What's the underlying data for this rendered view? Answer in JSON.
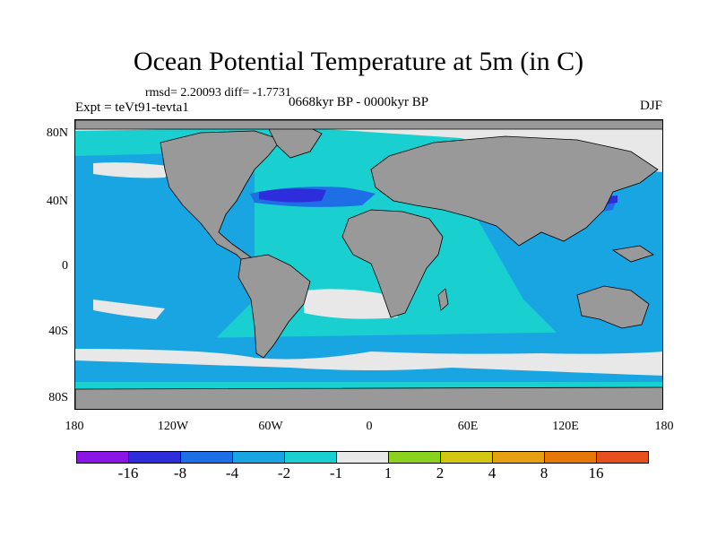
{
  "title": "Ocean Potential Temperature at 5m (in C)",
  "stats_line": "rmsd= 2.20093 diff= -1.7731",
  "experiment": "Expt = teVt91-tevta1",
  "period": "0668kyr BP - 0000kyr BP",
  "season": "DJF",
  "latitude_ticks": [
    "80N",
    "40N",
    "0",
    "40S",
    "80S"
  ],
  "longitude_ticks": [
    "180",
    "120W",
    "60W",
    "0",
    "60E",
    "120E",
    "180"
  ],
  "colorbar": {
    "colors": [
      "#8b14e6",
      "#2d2ddc",
      "#1e6ee6",
      "#19a5e1",
      "#19cfcf",
      "#e8e8e8",
      "#8ad21e",
      "#d2c814",
      "#e6a014",
      "#e6780a",
      "#e6501e"
    ],
    "labels": [
      "-16",
      "-8",
      "-4",
      "-2",
      "-1",
      "1",
      "2",
      "4",
      "8",
      "16"
    ]
  }
}
